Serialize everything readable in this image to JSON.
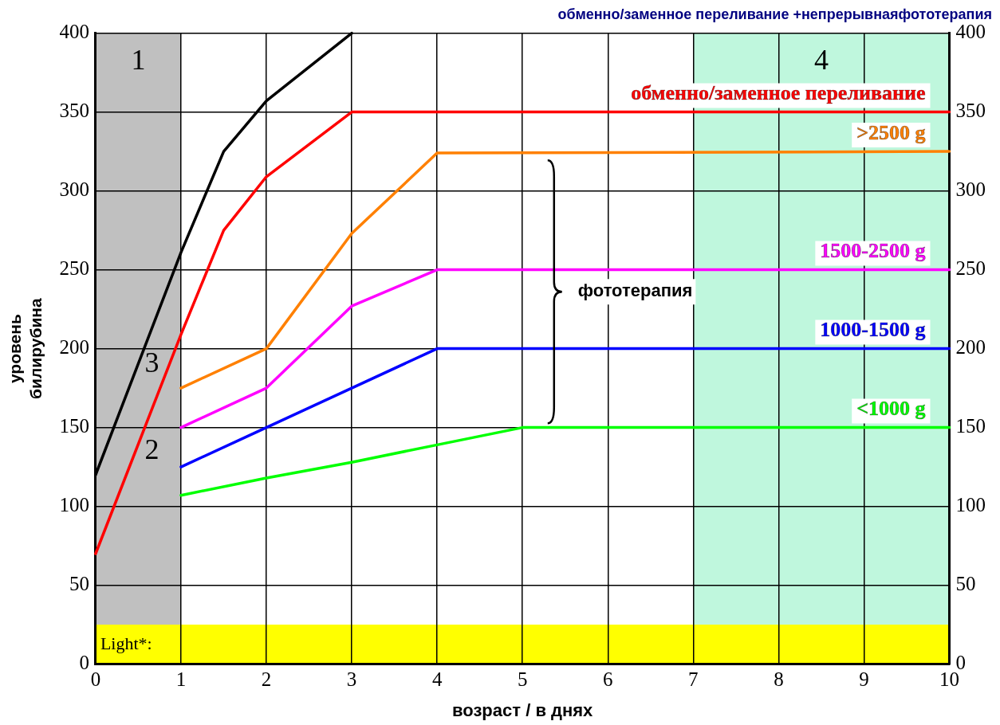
{
  "chart_data": {
    "type": "line",
    "title": "обменно/заменное переливание +непрерывнаяфототерапия",
    "xlabel": "возраст / в днях",
    "ylabel": "уровень билирубина",
    "xlim": [
      0,
      10
    ],
    "xticks": [
      0,
      1,
      2,
      3,
      4,
      5,
      6,
      7,
      8,
      9,
      10
    ],
    "ylim": [
      0,
      400
    ],
    "yticks": [
      0,
      50,
      100,
      150,
      200,
      250,
      300,
      350,
      400
    ],
    "y2lim": [
      0,
      400
    ],
    "y2ticks": [
      0,
      50,
      100,
      150,
      200,
      250,
      300,
      350,
      400
    ],
    "grid": true,
    "legend": false,
    "marker": "none",
    "line_style": "solid",
    "series": [
      {
        "color": "#000000",
        "x": [
          0,
          1,
          1.5,
          2,
          3
        ],
        "values": [
          120,
          261,
          325,
          357,
          400
        ]
      },
      {
        "name": "обменно/заменное переливание",
        "color": "#ff0000",
        "x": [
          0,
          1,
          1.5,
          2,
          3,
          10
        ],
        "values": [
          70,
          209,
          275,
          309,
          350,
          350
        ]
      },
      {
        "name": ">2500 g",
        "color": "#ff8000",
        "x": [
          1,
          2,
          3,
          4,
          10
        ],
        "values": [
          175,
          200,
          273,
          324,
          325
        ]
      },
      {
        "name": "1500-2500 g",
        "color": "#ff00ff",
        "x": [
          1,
          2,
          3,
          4,
          10
        ],
        "values": [
          150,
          175,
          227,
          250,
          250
        ]
      },
      {
        "name": "1000-1500 g",
        "color": "#0000ff",
        "x": [
          1,
          2,
          3,
          4,
          10
        ],
        "values": [
          125,
          150,
          175,
          200,
          200
        ]
      },
      {
        "name": "<1000 g",
        "color": "#00ff00",
        "x": [
          1,
          2,
          3,
          4,
          5,
          10
        ],
        "values": [
          107,
          118,
          128,
          139,
          150,
          150
        ]
      }
    ],
    "bands": [
      {
        "axis": "x",
        "from": 0,
        "to": 1,
        "label": "1",
        "color": "#c0c0c0"
      },
      {
        "axis": "x",
        "from": 7,
        "to": 10,
        "label": "4",
        "color": "#bff7dd"
      },
      {
        "axis": "y",
        "from": 0,
        "to": 25,
        "label": "Light*:",
        "color": "#ffff00"
      }
    ],
    "annotations": [
      {
        "text": "3",
        "x": 0.5,
        "y": 190
      },
      {
        "text": "2",
        "x": 0.5,
        "y": 135
      },
      "фототерапия"
    ]
  }
}
